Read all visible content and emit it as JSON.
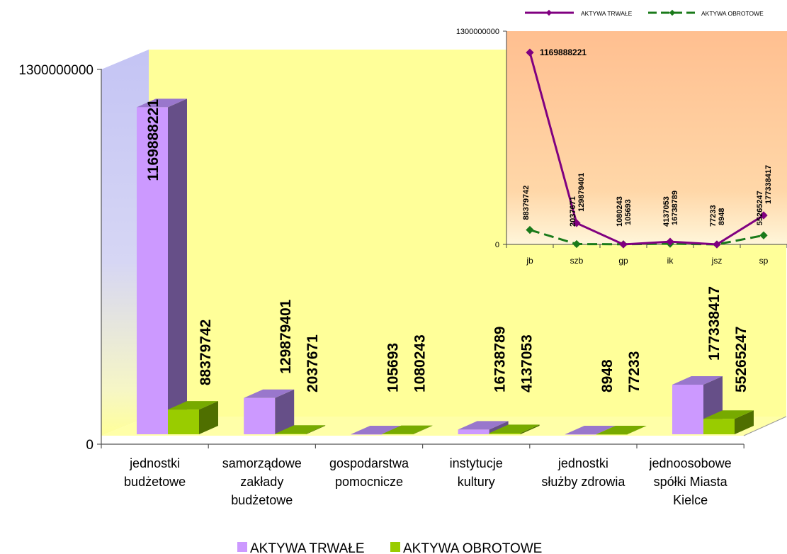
{
  "chart_data": [
    {
      "type": "bar",
      "categories": [
        "jednostki budżetowe",
        "samorządowe zakłady budżetowe",
        "gospodarstwa pomocnicze",
        "instytucje kultury",
        "jednostki służby zdrowia",
        "jednoosobowe spółki Miasta Kielce"
      ],
      "category_lines": [
        [
          "jednostki",
          "budżetowe"
        ],
        [
          "samorządowe",
          "zakłady",
          "budżetowe"
        ],
        [
          "gospodarstwa",
          "pomocnicze"
        ],
        [
          "instytucje",
          "kultury"
        ],
        [
          "jednostki",
          "służby zdrowia"
        ],
        [
          "jednoosobowe",
          "spółki Miasta",
          "Kielce"
        ]
      ],
      "series": [
        {
          "name": "AKTYWA TRWAŁE",
          "values": [
            1169888221,
            129879401,
            105693,
            16738789,
            8948,
            177338417
          ]
        },
        {
          "name": "AKTYWA OBROTOWE",
          "values": [
            88379742,
            2037671,
            1080243,
            4137053,
            77233,
            55265247
          ]
        }
      ],
      "yticks": [
        "0",
        "1300000000"
      ],
      "ylim": [
        0,
        1300000000
      ],
      "legend_position": "bottom",
      "colors": {
        "trwale_front": "#cc99ff",
        "trwale_top": "#9977cc",
        "trwale_side": "#664f88",
        "obrotowe_front": "#99cc00",
        "obrotowe_top": "#77aa00",
        "obrotowe_side": "#4f6f00",
        "back_wall": "#ffff99",
        "side_wall": "#c4c4f0"
      }
    },
    {
      "type": "line",
      "categories": [
        "jb",
        "szb",
        "gp",
        "ik",
        "jsz",
        "sp"
      ],
      "series": [
        {
          "name": "AKTYWA TRWAŁE",
          "values": [
            1169888221,
            129879401,
            105693,
            16738789,
            8948,
            177338417
          ]
        },
        {
          "name": "AKTYWA OBROTOWE",
          "values": [
            88379742,
            2037671,
            1080243,
            4137053,
            77233,
            55265247
          ]
        }
      ],
      "legend_labels": [
        "AKTYWA TRWAŁE",
        "AKTYWA OBROTOWE"
      ],
      "yticks": [
        "0",
        "1300000000"
      ],
      "ylim": [
        0,
        1300000000
      ],
      "legend_position": "top",
      "colors": {
        "trwale": "#800080",
        "obrotowe": "#1a7a1a",
        "plot_top": "#ffb88a",
        "plot_bottom": "#fff5d8"
      }
    }
  ]
}
